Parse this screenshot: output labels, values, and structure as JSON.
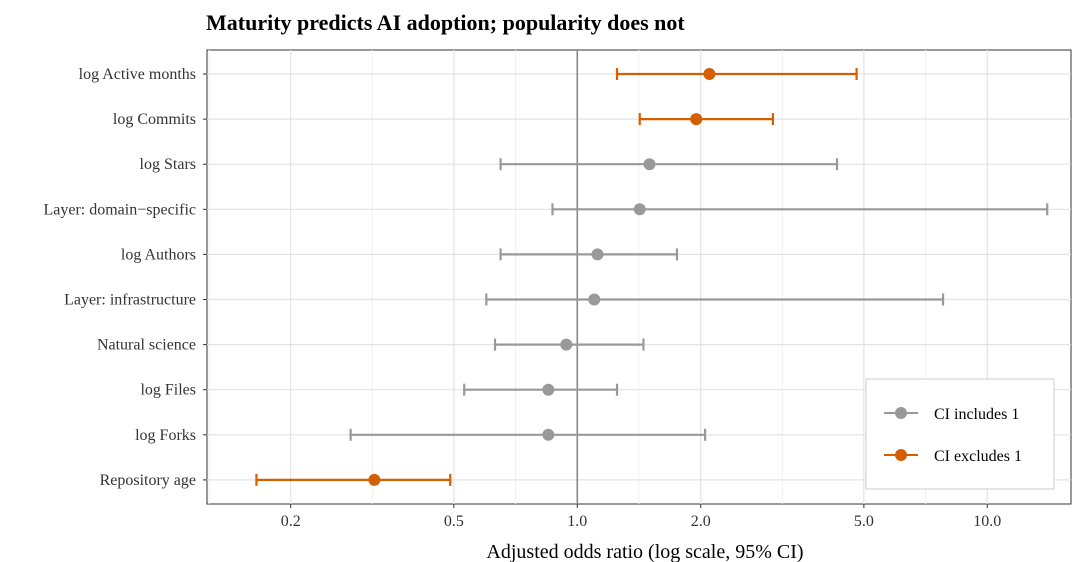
{
  "chart_data": {
    "type": "scatter",
    "title": "Maturity predicts AI adoption; popularity does not",
    "xlabel": "Adjusted odds ratio (log scale, 95% CI)",
    "ylabel": "",
    "x_scale": "log",
    "xlim": [
      0.125,
      16
    ],
    "x_ticks": [
      0.2,
      0.5,
      1.0,
      2.0,
      5.0,
      10.0
    ],
    "x_tick_labels": [
      "0.2",
      "0.5",
      "1.0",
      "2.0",
      "5.0",
      "10.0"
    ],
    "reference_line": 1,
    "grid": true,
    "legend_position": "bottom-right",
    "colors": {
      "includes": "#999999",
      "excludes": "#d55e00"
    },
    "series": [
      {
        "name": "CI includes 1",
        "color": "#999999"
      },
      {
        "name": "CI excludes 1",
        "color": "#d55e00"
      }
    ],
    "points": [
      {
        "label": "log Active months",
        "or": 2.1,
        "lo": 1.25,
        "hi": 4.8,
        "group": "CI excludes 1"
      },
      {
        "label": "log Commits",
        "or": 1.95,
        "lo": 1.42,
        "hi": 3.0,
        "group": "CI excludes 1"
      },
      {
        "label": "log Stars",
        "or": 1.5,
        "lo": 0.65,
        "hi": 4.3,
        "group": "CI includes 1"
      },
      {
        "label": "Layer: domain−specific",
        "or": 1.42,
        "lo": 0.87,
        "hi": 14.0,
        "group": "CI includes 1"
      },
      {
        "label": "log Authors",
        "or": 1.12,
        "lo": 0.65,
        "hi": 1.75,
        "group": "CI includes 1"
      },
      {
        "label": "Layer: infrastructure",
        "or": 1.1,
        "lo": 0.6,
        "hi": 7.8,
        "group": "CI includes 1"
      },
      {
        "label": "Natural science",
        "or": 0.94,
        "lo": 0.63,
        "hi": 1.45,
        "group": "CI includes 1"
      },
      {
        "label": "log Files",
        "or": 0.85,
        "lo": 0.53,
        "hi": 1.25,
        "group": "CI includes 1"
      },
      {
        "label": "log Forks",
        "or": 0.85,
        "lo": 0.28,
        "hi": 2.05,
        "group": "CI includes 1"
      },
      {
        "label": "Repository age",
        "or": 0.32,
        "lo": 0.165,
        "hi": 0.49,
        "group": "CI excludes 1"
      }
    ]
  }
}
